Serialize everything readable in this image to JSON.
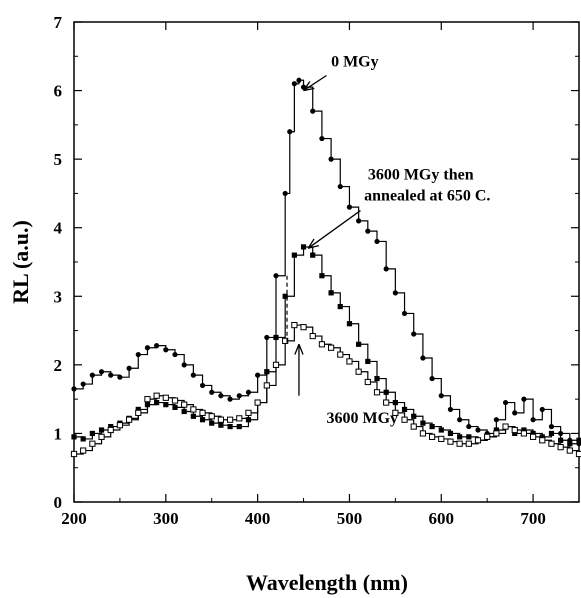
{
  "chart_data": {
    "type": "line",
    "xlabel": "Wavelength (nm)",
    "ylabel": "RL (a.u.)",
    "xlim": [
      200,
      750
    ],
    "ylim": [
      0,
      7
    ],
    "xticks": [
      200,
      300,
      400,
      500,
      600,
      700
    ],
    "yticks": [
      0,
      1,
      2,
      3,
      4,
      5,
      6,
      7
    ],
    "grid": false,
    "series": [
      {
        "name": "0 MGy",
        "marker": "filled-circle",
        "points": [
          [
            200,
            1.65
          ],
          [
            210,
            1.72
          ],
          [
            220,
            1.85
          ],
          [
            230,
            1.9
          ],
          [
            240,
            1.85
          ],
          [
            250,
            1.82
          ],
          [
            260,
            1.95
          ],
          [
            270,
            2.15
          ],
          [
            280,
            2.25
          ],
          [
            290,
            2.28
          ],
          [
            300,
            2.22
          ],
          [
            310,
            2.15
          ],
          [
            320,
            2.0
          ],
          [
            330,
            1.85
          ],
          [
            340,
            1.7
          ],
          [
            350,
            1.6
          ],
          [
            360,
            1.55
          ],
          [
            370,
            1.5
          ],
          [
            380,
            1.55
          ],
          [
            390,
            1.6
          ],
          [
            400,
            1.85
          ],
          [
            410,
            2.4
          ],
          [
            420,
            3.3
          ],
          [
            430,
            4.5
          ],
          [
            435,
            5.4
          ],
          [
            440,
            6.1
          ],
          [
            445,
            6.15
          ],
          [
            450,
            6.05
          ],
          [
            460,
            5.7
          ],
          [
            470,
            5.3
          ],
          [
            480,
            5.0
          ],
          [
            490,
            4.6
          ],
          [
            500,
            4.3
          ],
          [
            510,
            4.1
          ],
          [
            520,
            3.95
          ],
          [
            530,
            3.8
          ],
          [
            540,
            3.4
          ],
          [
            550,
            3.05
          ],
          [
            560,
            2.75
          ],
          [
            570,
            2.45
          ],
          [
            580,
            2.1
          ],
          [
            590,
            1.8
          ],
          [
            600,
            1.55
          ],
          [
            610,
            1.35
          ],
          [
            620,
            1.2
          ],
          [
            630,
            1.1
          ],
          [
            640,
            1.05
          ],
          [
            650,
            1.0
          ],
          [
            660,
            1.2
          ],
          [
            670,
            1.45
          ],
          [
            680,
            1.3
          ],
          [
            690,
            1.5
          ],
          [
            700,
            1.2
          ],
          [
            710,
            1.35
          ],
          [
            720,
            1.1
          ],
          [
            730,
            1.0
          ],
          [
            740,
            0.9
          ],
          [
            750,
            0.85
          ]
        ]
      },
      {
        "name": "3600 MGy then annealed at 650 C.",
        "marker": "filled-square",
        "points": [
          [
            200,
            0.95
          ],
          [
            210,
            0.92
          ],
          [
            220,
            1.0
          ],
          [
            230,
            1.05
          ],
          [
            240,
            1.1
          ],
          [
            250,
            1.15
          ],
          [
            260,
            1.22
          ],
          [
            270,
            1.35
          ],
          [
            280,
            1.42
          ],
          [
            290,
            1.45
          ],
          [
            300,
            1.42
          ],
          [
            310,
            1.38
          ],
          [
            320,
            1.32
          ],
          [
            330,
            1.25
          ],
          [
            340,
            1.2
          ],
          [
            350,
            1.15
          ],
          [
            360,
            1.12
          ],
          [
            370,
            1.1
          ],
          [
            380,
            1.1
          ],
          [
            390,
            1.2
          ],
          [
            400,
            1.45
          ],
          [
            410,
            1.9
          ],
          [
            420,
            2.4
          ],
          [
            430,
            3.0
          ],
          [
            440,
            3.6
          ],
          [
            450,
            3.72
          ],
          [
            460,
            3.6
          ],
          [
            470,
            3.3
          ],
          [
            480,
            3.05
          ],
          [
            490,
            2.85
          ],
          [
            500,
            2.6
          ],
          [
            510,
            2.3
          ],
          [
            520,
            2.05
          ],
          [
            530,
            1.8
          ],
          [
            540,
            1.6
          ],
          [
            550,
            1.45
          ],
          [
            560,
            1.35
          ],
          [
            570,
            1.25
          ],
          [
            580,
            1.15
          ],
          [
            590,
            1.1
          ],
          [
            600,
            1.05
          ],
          [
            610,
            1.0
          ],
          [
            620,
            0.95
          ],
          [
            630,
            0.95
          ],
          [
            640,
            0.9
          ],
          [
            650,
            0.95
          ],
          [
            660,
            1.05
          ],
          [
            670,
            1.1
          ],
          [
            680,
            1.0
          ],
          [
            690,
            1.05
          ],
          [
            700,
            1.0
          ],
          [
            710,
            0.95
          ],
          [
            720,
            1.0
          ],
          [
            730,
            0.9
          ],
          [
            740,
            0.85
          ],
          [
            750,
            0.9
          ]
        ]
      },
      {
        "name": "3600 MGy",
        "marker": "open-square",
        "points": [
          [
            200,
            0.7
          ],
          [
            210,
            0.75
          ],
          [
            220,
            0.85
          ],
          [
            230,
            0.95
          ],
          [
            240,
            1.05
          ],
          [
            250,
            1.12
          ],
          [
            260,
            1.2
          ],
          [
            270,
            1.3
          ],
          [
            280,
            1.5
          ],
          [
            290,
            1.55
          ],
          [
            300,
            1.52
          ],
          [
            310,
            1.48
          ],
          [
            320,
            1.42
          ],
          [
            330,
            1.35
          ],
          [
            340,
            1.3
          ],
          [
            350,
            1.25
          ],
          [
            360,
            1.2
          ],
          [
            370,
            1.2
          ],
          [
            380,
            1.22
          ],
          [
            390,
            1.3
          ],
          [
            400,
            1.45
          ],
          [
            410,
            1.7
          ],
          [
            420,
            2.0
          ],
          [
            430,
            2.35
          ],
          [
            440,
            2.58
          ],
          [
            450,
            2.55
          ],
          [
            460,
            2.42
          ],
          [
            470,
            2.3
          ],
          [
            480,
            2.25
          ],
          [
            490,
            2.15
          ],
          [
            500,
            2.05
          ],
          [
            510,
            1.9
          ],
          [
            520,
            1.75
          ],
          [
            530,
            1.6
          ],
          [
            540,
            1.45
          ],
          [
            550,
            1.3
          ],
          [
            560,
            1.2
          ],
          [
            570,
            1.1
          ],
          [
            580,
            1.0
          ],
          [
            590,
            0.95
          ],
          [
            600,
            0.92
          ],
          [
            610,
            0.88
          ],
          [
            620,
            0.85
          ],
          [
            630,
            0.85
          ],
          [
            640,
            0.9
          ],
          [
            650,
            0.95
          ],
          [
            660,
            1.0
          ],
          [
            670,
            1.1
          ],
          [
            680,
            1.05
          ],
          [
            690,
            1.0
          ],
          [
            700,
            0.95
          ],
          [
            710,
            0.9
          ],
          [
            720,
            0.85
          ],
          [
            730,
            0.8
          ],
          [
            740,
            0.75
          ],
          [
            750,
            0.7
          ]
        ]
      }
    ],
    "annotations": [
      {
        "label": "0 MGy",
        "target": [
          450,
          6.0
        ]
      },
      {
        "label": "3600 MGy then",
        "label2": "annealed at 650 C.",
        "target": [
          455,
          3.7
        ]
      },
      {
        "label": "3600 MGy",
        "target": [
          445,
          2.3
        ]
      }
    ]
  }
}
